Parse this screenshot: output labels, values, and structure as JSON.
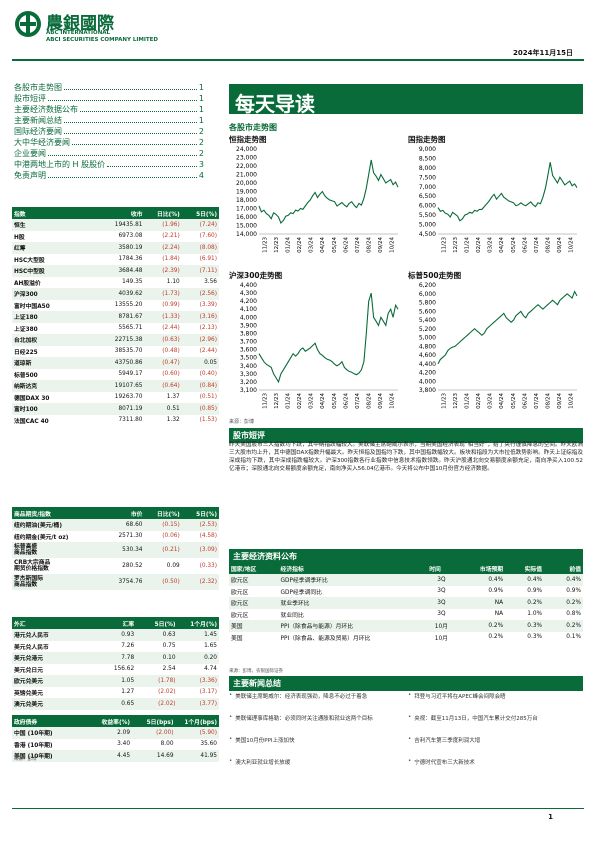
{
  "header": {
    "company_cn": "農銀國際",
    "company_en1": "ABC INTERNATIONAL",
    "company_en2": "ABCI SECURITIES COMPANY LIMITED",
    "date": "2024年11月15日"
  },
  "toc": [
    {
      "label": "各股市走势图",
      "page": "1"
    },
    {
      "label": "股市短评",
      "page": "1"
    },
    {
      "label": "主要经济数据公布",
      "page": "1"
    },
    {
      "label": "主要新闻总结",
      "page": "1"
    },
    {
      "label": "国际经济要闻",
      "page": "2"
    },
    {
      "label": "大中华经济要闻",
      "page": "2"
    },
    {
      "label": "企业要闻",
      "page": "2"
    },
    {
      "label": "中港两地上市的 H 股股价",
      "page": "3"
    },
    {
      "label": "免责声明",
      "page": "4"
    }
  ],
  "title": "每天导读",
  "section_markets": "各股市走势图",
  "charts": [
    {
      "title": "恒指走势图",
      "y_ticks": [
        "24,000",
        "23,000",
        "22,000",
        "21,000",
        "20,000",
        "19,000",
        "18,000",
        "17,000",
        "16,000",
        "15,000",
        "14,000"
      ],
      "ylim": [
        14000,
        24000
      ],
      "x_ticks": [
        "11/23",
        "12/23",
        "01/24",
        "02/24",
        "03/24",
        "04/24",
        "05/24",
        "06/24",
        "07/24",
        "08/24",
        "09/24",
        "10/24"
      ],
      "values": [
        17300,
        16600,
        16800,
        16400,
        16200,
        15800,
        16500,
        16300,
        16000,
        15300,
        15600,
        16100,
        16200,
        16500,
        16400,
        16800,
        16700,
        17000,
        16900,
        17300,
        17700,
        18000,
        18500,
        18900,
        18300,
        18700,
        19000,
        18500,
        18200,
        18000,
        17900,
        17800,
        17300,
        17500,
        17700,
        17400,
        17200,
        17600,
        17800,
        17400,
        17100,
        17600,
        17400,
        18200,
        19400,
        21000,
        22700,
        21200,
        20800,
        20300,
        21000,
        20500,
        20000,
        20200,
        20400,
        19800,
        20100,
        19500
      ]
    },
    {
      "title": "国指走势图",
      "y_ticks": [
        "9,000",
        "8,500",
        "8,000",
        "7,500",
        "7,000",
        "6,500",
        "6,000",
        "5,500",
        "5,000",
        "4,500"
      ],
      "ylim": [
        4500,
        9000
      ],
      "x_ticks": [
        "11/23",
        "12/23",
        "01/24",
        "02/24",
        "03/24",
        "04/24",
        "05/24",
        "06/24",
        "07/24",
        "08/24",
        "09/24",
        "10/24"
      ],
      "values": [
        5900,
        5700,
        5750,
        5600,
        5550,
        5400,
        5650,
        5550,
        5450,
        5200,
        5300,
        5500,
        5550,
        5650,
        5600,
        5750,
        5700,
        5800,
        5800,
        5950,
        6100,
        6250,
        6450,
        6600,
        6350,
        6500,
        6650,
        6450,
        6350,
        6250,
        6200,
        6150,
        6000,
        6050,
        6150,
        6050,
        6000,
        6100,
        6200,
        6050,
        5950,
        6150,
        6100,
        6450,
        6900,
        7550,
        8300,
        7600,
        7400,
        7200,
        7500,
        7300,
        7100,
        7200,
        7300,
        7050,
        7150,
        6950
      ]
    },
    {
      "title": "沪深300走势图",
      "y_ticks": [
        "4,400",
        "4,300",
        "4,200",
        "4,100",
        "4,000",
        "3,900",
        "3,800",
        "3,700",
        "3,600",
        "3,500",
        "3,400",
        "3,300",
        "3,200",
        "3,100"
      ],
      "ylim": [
        3100,
        4400
      ],
      "x_ticks": [
        "11/23",
        "12/23",
        "01/24",
        "02/24",
        "03/24",
        "04/24",
        "05/24",
        "06/24",
        "07/24",
        "08/24",
        "09/24",
        "10/24"
      ],
      "values": [
        3550,
        3500,
        3450,
        3420,
        3400,
        3380,
        3300,
        3250,
        3200,
        3300,
        3350,
        3400,
        3450,
        3500,
        3550,
        3520,
        3550,
        3600,
        3620,
        3580,
        3600,
        3620,
        3650,
        3680,
        3600,
        3550,
        3530,
        3500,
        3480,
        3470,
        3450,
        3420,
        3400,
        3420,
        3450,
        3380,
        3350,
        3330,
        3320,
        3300,
        3290,
        3310,
        3350,
        3450,
        3800,
        4200,
        4300,
        4000,
        3950,
        3900,
        4000,
        3950,
        3900,
        4050,
        4100,
        4000,
        4150,
        4100
      ]
    },
    {
      "title": "标普500走势图",
      "y_ticks": [
        "6,200",
        "6,000",
        "5,800",
        "5,600",
        "5,400",
        "5,200",
        "5,000",
        "4,800",
        "4,600",
        "4,400",
        "4,200",
        "4,000",
        "3,800"
      ],
      "ylim": [
        3800,
        6200
      ],
      "x_ticks": [
        "11/23",
        "12/23",
        "01/24",
        "02/24",
        "03/24",
        "04/24",
        "05/24",
        "06/24",
        "07/24",
        "08/24",
        "09/24",
        "10/24"
      ],
      "values": [
        4400,
        4500,
        4550,
        4600,
        4700,
        4750,
        4780,
        4800,
        4850,
        4900,
        4950,
        5000,
        5050,
        5100,
        5150,
        5200,
        5150,
        5100,
        5050,
        5100,
        5200,
        5250,
        5300,
        5350,
        5400,
        5450,
        5500,
        5550,
        5450,
        5400,
        5350,
        5400,
        5500,
        5550,
        5600,
        5500,
        5450,
        5550,
        5600,
        5650,
        5700,
        5750,
        5700,
        5650,
        5700,
        5750,
        5800,
        5850,
        5800,
        5750,
        5850,
        5900,
        5950,
        6000,
        5950,
        5900,
        6050,
        5950
      ]
    }
  ],
  "chart_source": "来源：彭博",
  "section_comment": "股市短评",
  "comment_text": "昨天美国股市三大指数均下跌，其中纳指跌幅较大。美联储主席鲍威尔表示，当期美国经济表现“相当好”，给了央行谨慎降息的空间。昨天欧洲三大股市均上升，其中德国DAX指数升幅最大。昨天恒指及国指均下跌，其中国指跌幅较大。板块和指段为大市拉低跌势影响。昨天上证综指及深成指均下跌，其中深成指跌幅较大。沪深300指数各行业指数中信息技术指数领跌。昨天沪股通北向交易额度余额充足，南向净买入100.52亿港币；深股通北向交易额度余额充足，南向净买入56.04亿港币。今天将公布中国10月份官方经济数据。",
  "index_table": {
    "headers": [
      "指数",
      "收市",
      "日比(%)",
      "5日(%)"
    ],
    "rows": [
      [
        "恒生",
        "19435.81",
        "(1.96)",
        "(7.24)"
      ],
      [
        "H股",
        "6973.08",
        "(2.21)",
        "(7.60)"
      ],
      [
        "红筹",
        "3580.19",
        "(2.24)",
        "(8.08)"
      ],
      [
        "HSC大型股",
        "1784.36",
        "(1.84)",
        "(6.91)"
      ],
      [
        "HSC中型股",
        "3684.48",
        "(2.39)",
        "(7.11)"
      ],
      [
        "AH股溢价",
        "149.35",
        "1.10",
        "3.56"
      ],
      [
        "沪深300",
        "4039.62",
        "(1.73)",
        "(2.56)"
      ],
      [
        "富时中国A50",
        "13555.20",
        "(0.99)",
        "(3.39)"
      ],
      [
        "上证180",
        "8781.67",
        "(1.33)",
        "(3.16)"
      ],
      [
        "上证380",
        "5565.71",
        "(2.44)",
        "(2.13)"
      ],
      [
        "台北加权",
        "22715.38",
        "(0.63)",
        "(2.96)"
      ],
      [
        "日经225",
        "38535.70",
        "(0.48)",
        "(2.44)"
      ],
      [
        "道琼斯",
        "43750.86",
        "(0.47)",
        "0.05"
      ],
      [
        "标普500",
        "5949.17",
        "(0.60)",
        "(0.40)"
      ],
      [
        "纳斯达克",
        "19107.65",
        "(0.64)",
        "(0.84)"
      ],
      [
        "德国DAX 30",
        "19263.70",
        "1.37",
        "(0.51)"
      ],
      [
        "富时100",
        "8071.19",
        "0.51",
        "(0.85)"
      ],
      [
        "法国CAC 40",
        "7311.80",
        "1.32",
        "(1.53)"
      ]
    ]
  },
  "commodity_table": {
    "headers": [
      "商品期货/指数",
      "市价",
      "日比(%)",
      "5日(%)"
    ],
    "rows": [
      [
        "纽约期油(美元/桶)",
        "68.60",
        "(0.15)",
        "(2.53)"
      ],
      [
        "纽约期金(美元/t oz)",
        "2571.30",
        "(0.06)",
        "(4.58)"
      ],
      [
        "标普高盛\n商品指数",
        "530.34",
        "(0.21)",
        "(3.09)"
      ],
      [
        "CRB大宗商品\n期货价格指数",
        "280.52",
        "0.09",
        "(0.33)"
      ],
      [
        "罗杰斯国际\n商品指数",
        "3754.76",
        "(0.50)",
        "(2.32)"
      ]
    ]
  },
  "fx_table": {
    "headers": [
      "外汇",
      "汇率",
      "5日(%)",
      "1个月(%)"
    ],
    "rows": [
      [
        "港元兑人民币",
        "0.93",
        "0.63",
        "1.45"
      ],
      [
        "美元兑人民币",
        "7.26",
        "0.75",
        "1.65"
      ],
      [
        "美元兑港元",
        "7.78",
        "0.10",
        "0.20"
      ],
      [
        "美元兑日元",
        "156.62",
        "2.54",
        "4.74"
      ],
      [
        "欧元兑美元",
        "1.05",
        "(1.78)",
        "(3.36)"
      ],
      [
        "英镑兑美元",
        "1.27",
        "(2.02)",
        "(3.17)"
      ],
      [
        "澳元兑美元",
        "0.65",
        "(2.02)",
        "(3.77)"
      ]
    ]
  },
  "bond_table": {
    "headers": [
      "政府债券",
      "收益率(%)",
      "5日(bps)",
      "1个月(bps)"
    ],
    "rows": [
      [
        "中国 (10年期)",
        "2.09",
        "(2.00)",
        "(5.90)"
      ],
      [
        "香港 (10年期)",
        "3.40",
        "8.00",
        "35.60"
      ],
      [
        "美国 (10年期)",
        "4.45",
        "14.69",
        "41.95"
      ]
    ]
  },
  "left_source": "来源：彭博",
  "section_econ": "主要经济资料公布",
  "econ_table": {
    "headers": [
      "国家/地区",
      "经济指标",
      "时间",
      "市场预期",
      "实际值",
      "前值"
    ],
    "rows": [
      [
        "欧元区",
        "GDP经季调季环比",
        "3Q",
        "0.4%",
        "0.4%",
        "0.4%"
      ],
      [
        "欧元区",
        "GDP经季调同比",
        "3Q",
        "0.9%",
        "0.9%",
        "0.9%"
      ],
      [
        "欧元区",
        "就业季环比",
        "3Q",
        "NA",
        "0.2%",
        "0.2%"
      ],
      [
        "欧元区",
        "就业同比",
        "3Q",
        "NA",
        "1.0%",
        "0.8%"
      ],
      [
        "美国",
        "PPI（除食品与能源）月环比",
        "10月",
        "0.2%",
        "0.3%",
        "0.2%"
      ],
      [
        "美国",
        "PPI（除食品、能源及贸易）月环比",
        "10月",
        "0.2%",
        "0.3%",
        "0.1%"
      ]
    ]
  },
  "econ_source": "来源：彭博，农银国际证券",
  "section_news": "主要新闻总结",
  "news_left": [
    "美联储主席鲍威尔：经济表现强劲，降息不必过于着急",
    "美联储理事库格勒：必须同时关注通胀和就业这两个目标",
    "美国10月份PPI上涨加快",
    "澳大利亚就业增长放缓"
  ],
  "news_right": [
    "拜登与习近平将在APEC峰会间隙会晤",
    "央视：截至11月13日，中国汽车累计交付285万台",
    "吉利汽车第三季度利润大增",
    "宁德时代宣布三大新技术"
  ],
  "page_number": "1"
}
